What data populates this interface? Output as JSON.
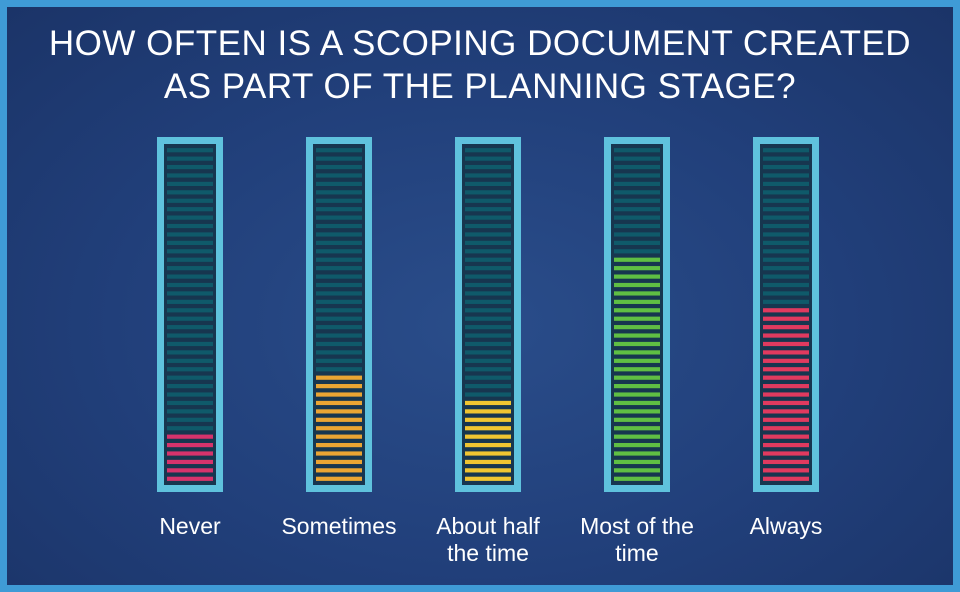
{
  "chart_data": {
    "type": "bar",
    "title_lines": [
      "HOW OFTEN IS A SCOPING DOCUMENT CREATED",
      "AS PART OF THE PLANNING STAGE?"
    ],
    "categories": [
      [
        "Never"
      ],
      [
        "Sometimes"
      ],
      [
        "About half",
        "the time"
      ],
      [
        "Most of the",
        "time"
      ],
      [
        "Always"
      ]
    ],
    "values": [
      6,
      13,
      10,
      27,
      21
    ],
    "total_segments": 40,
    "fill_colors": [
      "#d6336c",
      "#eaa533",
      "#f0c531",
      "#5fbf43",
      "#e03a5f"
    ],
    "empty_color": "#0f5a6a",
    "frame_color": "#5fc2dd",
    "xlabel": "",
    "ylabel": "",
    "grid": false
  }
}
